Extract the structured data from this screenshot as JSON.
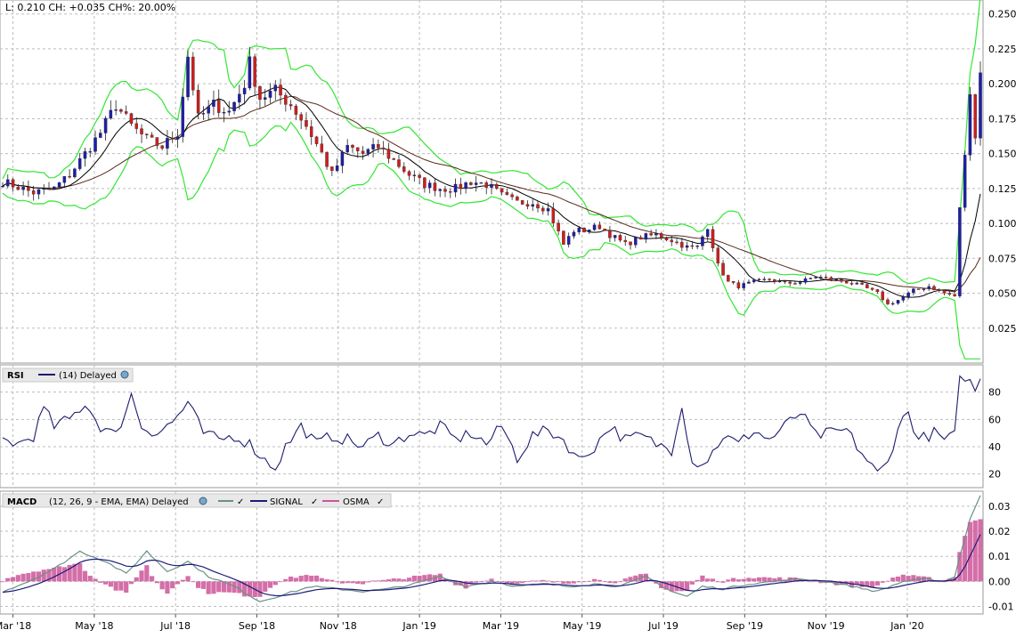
{
  "header": {
    "quote": "L: 0.210 CH: +0.035 CH%: 20.00%"
  },
  "colors": {
    "up": "#1f1fa8",
    "down": "#cc1f1f",
    "bollinger": "#33e633",
    "ma_short": "#000000",
    "ma_long": "#5a2a1a",
    "rsi": "#1c1c6e",
    "macd": "#6a8f86",
    "signal": "#1c1c7a",
    "osma": "#cc5599",
    "grid": "#bdbdbd"
  },
  "x_axis": {
    "labels": [
      "Mar '18",
      "May '18",
      "Jul '18",
      "Sep '18",
      "Nov '18",
      "Jan '19",
      "Mar '19",
      "May '19",
      "Jul '19",
      "Sep '19",
      "Nov '19",
      "Jan '20"
    ]
  },
  "chart_data": [
    {
      "type": "candlestick",
      "name": "price",
      "yticks": [
        "0.250",
        "0.225",
        "0.200",
        "0.175",
        "0.150",
        "0.125",
        "0.100",
        "0.075",
        "0.050",
        "0.025"
      ],
      "ylim": [
        0,
        0.26
      ],
      "anchors": [
        [
          0,
          0.13
        ],
        [
          6,
          0.122
        ],
        [
          10,
          0.125
        ],
        [
          13,
          0.135
        ],
        [
          16,
          0.15
        ],
        [
          19,
          0.165
        ],
        [
          22,
          0.185
        ],
        [
          25,
          0.17
        ],
        [
          28,
          0.16
        ],
        [
          31,
          0.155
        ],
        [
          34,
          0.165
        ],
        [
          36,
          0.22
        ],
        [
          38,
          0.175
        ],
        [
          41,
          0.185
        ],
        [
          44,
          0.18
        ],
        [
          47,
          0.2
        ],
        [
          48,
          0.215
        ],
        [
          50,
          0.19
        ],
        [
          53,
          0.195
        ],
        [
          56,
          0.185
        ],
        [
          59,
          0.17
        ],
        [
          62,
          0.15
        ],
        [
          64,
          0.135
        ],
        [
          67,
          0.155
        ],
        [
          70,
          0.15
        ],
        [
          73,
          0.155
        ],
        [
          76,
          0.145
        ],
        [
          79,
          0.135
        ],
        [
          82,
          0.128
        ],
        [
          85,
          0.125
        ],
        [
          88,
          0.125
        ],
        [
          91,
          0.13
        ],
        [
          94,
          0.128
        ],
        [
          97,
          0.12
        ],
        [
          100,
          0.115
        ],
        [
          103,
          0.115
        ],
        [
          106,
          0.11
        ],
        [
          109,
          0.085
        ],
        [
          111,
          0.095
        ],
        [
          113,
          0.095
        ],
        [
          116,
          0.098
        ],
        [
          118,
          0.092
        ],
        [
          121,
          0.085
        ],
        [
          124,
          0.09
        ],
        [
          127,
          0.092
        ],
        [
          130,
          0.088
        ],
        [
          133,
          0.083
        ],
        [
          135,
          0.083
        ],
        [
          137,
          0.098
        ],
        [
          139,
          0.07
        ],
        [
          141,
          0.058
        ],
        [
          143,
          0.055
        ],
        [
          146,
          0.058
        ],
        [
          149,
          0.06
        ],
        [
          152,
          0.057
        ],
        [
          155,
          0.058
        ],
        [
          158,
          0.062
        ],
        [
          161,
          0.06
        ],
        [
          164,
          0.058
        ],
        [
          167,
          0.055
        ],
        [
          170,
          0.05
        ],
        [
          172,
          0.042
        ],
        [
          174,
          0.045
        ],
        [
          177,
          0.052
        ],
        [
          180,
          0.055
        ],
        [
          183,
          0.05
        ],
        [
          185,
          0.048
        ],
        [
          186,
          0.11
        ],
        [
          187,
          0.15
        ],
        [
          188,
          0.19
        ],
        [
          189,
          0.165
        ],
        [
          190,
          0.21
        ]
      ]
    },
    {
      "type": "line",
      "name": "RSI",
      "legend_title": "RSI",
      "legend_series": "(14) Delayed",
      "yticks": [
        "80",
        "60",
        "40",
        "20"
      ],
      "ylim": [
        10,
        100
      ],
      "anchors": [
        [
          0,
          45
        ],
        [
          3,
          42
        ],
        [
          6,
          48
        ],
        [
          8,
          68
        ],
        [
          10,
          55
        ],
        [
          13,
          60
        ],
        [
          16,
          72
        ],
        [
          19,
          55
        ],
        [
          22,
          48
        ],
        [
          25,
          78
        ],
        [
          27,
          55
        ],
        [
          30,
          50
        ],
        [
          33,
          58
        ],
        [
          36,
          72
        ],
        [
          39,
          50
        ],
        [
          42,
          45
        ],
        [
          45,
          48
        ],
        [
          48,
          42
        ],
        [
          51,
          30
        ],
        [
          53,
          25
        ],
        [
          55,
          40
        ],
        [
          58,
          55
        ],
        [
          61,
          42
        ],
        [
          64,
          48
        ],
        [
          67,
          45
        ],
        [
          70,
          40
        ],
        [
          73,
          48
        ],
        [
          76,
          42
        ],
        [
          79,
          50
        ],
        [
          82,
          48
        ],
        [
          85,
          55
        ],
        [
          88,
          45
        ],
        [
          91,
          50
        ],
        [
          94,
          42
        ],
        [
          97,
          55
        ],
        [
          100,
          32
        ],
        [
          103,
          48
        ],
        [
          106,
          52
        ],
        [
          109,
          45
        ],
        [
          112,
          30
        ],
        [
          115,
          40
        ],
        [
          118,
          55
        ],
        [
          121,
          45
        ],
        [
          124,
          48
        ],
        [
          127,
          42
        ],
        [
          130,
          38
        ],
        [
          132,
          72
        ],
        [
          134,
          28
        ],
        [
          137,
          30
        ],
        [
          140,
          48
        ],
        [
          143,
          42
        ],
        [
          146,
          52
        ],
        [
          149,
          45
        ],
        [
          152,
          55
        ],
        [
          155,
          65
        ],
        [
          158,
          48
        ],
        [
          161,
          50
        ],
        [
          164,
          52
        ],
        [
          167,
          35
        ],
        [
          170,
          20
        ],
        [
          172,
          28
        ],
        [
          174,
          55
        ],
        [
          176,
          65
        ],
        [
          178,
          45
        ],
        [
          181,
          50
        ],
        [
          183,
          45
        ],
        [
          185,
          48
        ],
        [
          186,
          88
        ],
        [
          187,
          92
        ],
        [
          189,
          82
        ],
        [
          190,
          88
        ]
      ]
    },
    {
      "type": "line",
      "name": "MACD",
      "legend_title": "MACD",
      "legend_params": "(12, 26, 9 - EMA, EMA) Delayed",
      "legend_signal": "SIGNAL",
      "legend_osma": "OSMA",
      "yticks": [
        "0.03",
        "0.02",
        "0.01",
        "0.00",
        "-0.01"
      ],
      "ylim": [
        -0.013,
        0.036
      ],
      "anchors": [
        [
          0,
          -0.004
        ],
        [
          5,
          0.0
        ],
        [
          10,
          0.005
        ],
        [
          15,
          0.012
        ],
        [
          20,
          0.008
        ],
        [
          24,
          0.003
        ],
        [
          28,
          0.012
        ],
        [
          32,
          0.004
        ],
        [
          36,
          0.008
        ],
        [
          40,
          0.002
        ],
        [
          45,
          -0.002
        ],
        [
          50,
          -0.008
        ],
        [
          55,
          -0.005
        ],
        [
          60,
          -0.002
        ],
        [
          65,
          -0.003
        ],
        [
          70,
          -0.004
        ],
        [
          75,
          -0.003
        ],
        [
          80,
          -0.001
        ],
        [
          85,
          0.002
        ],
        [
          90,
          -0.002
        ],
        [
          95,
          0.0
        ],
        [
          100,
          -0.002
        ],
        [
          105,
          -0.001
        ],
        [
          110,
          -0.002
        ],
        [
          115,
          -0.001
        ],
        [
          120,
          -0.002
        ],
        [
          125,
          0.002
        ],
        [
          130,
          -0.004
        ],
        [
          133,
          -0.006
        ],
        [
          136,
          -0.002
        ],
        [
          140,
          -0.003
        ],
        [
          145,
          -0.001
        ],
        [
          150,
          0.0
        ],
        [
          155,
          0.001
        ],
        [
          160,
          0.0
        ],
        [
          165,
          -0.002
        ],
        [
          170,
          -0.004
        ],
        [
          175,
          0.0
        ],
        [
          180,
          0.001
        ],
        [
          183,
          0.0
        ],
        [
          185,
          0.002
        ],
        [
          186,
          0.01
        ],
        [
          188,
          0.025
        ],
        [
          190,
          0.034
        ]
      ]
    }
  ]
}
